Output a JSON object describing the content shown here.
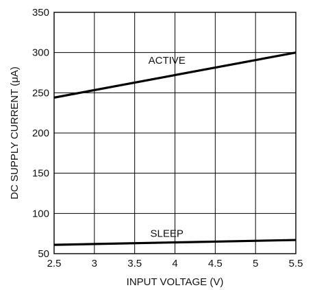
{
  "chart_data": {
    "type": "line",
    "title": "",
    "xlabel": "INPUT VOLTAGE (V)",
    "ylabel": "DC SUPPLY CURRENT (μA)",
    "xlim": [
      2.5,
      5.5
    ],
    "ylim": [
      50,
      350
    ],
    "x_ticks": [
      2.5,
      3,
      3.5,
      4,
      4.5,
      5,
      5.5
    ],
    "x_tick_labels": [
      "2.5",
      "3",
      "3.5",
      "4",
      "4.5",
      "5",
      "5.5"
    ],
    "y_ticks": [
      50,
      100,
      150,
      200,
      250,
      300,
      350
    ],
    "y_tick_labels": [
      "50",
      "100",
      "150",
      "200",
      "250",
      "300",
      "350"
    ],
    "grid": true,
    "legend": "none",
    "series": [
      {
        "name": "ACTIVE",
        "x": [
          2.5,
          5.5
        ],
        "y": [
          244,
          300
        ],
        "color": "#000000",
        "label_at": [
          3.9,
          286
        ]
      },
      {
        "name": "SLEEP",
        "x": [
          2.5,
          5.5
        ],
        "y": [
          61,
          67
        ],
        "color": "#000000",
        "label_at": [
          3.9,
          71
        ]
      }
    ]
  }
}
